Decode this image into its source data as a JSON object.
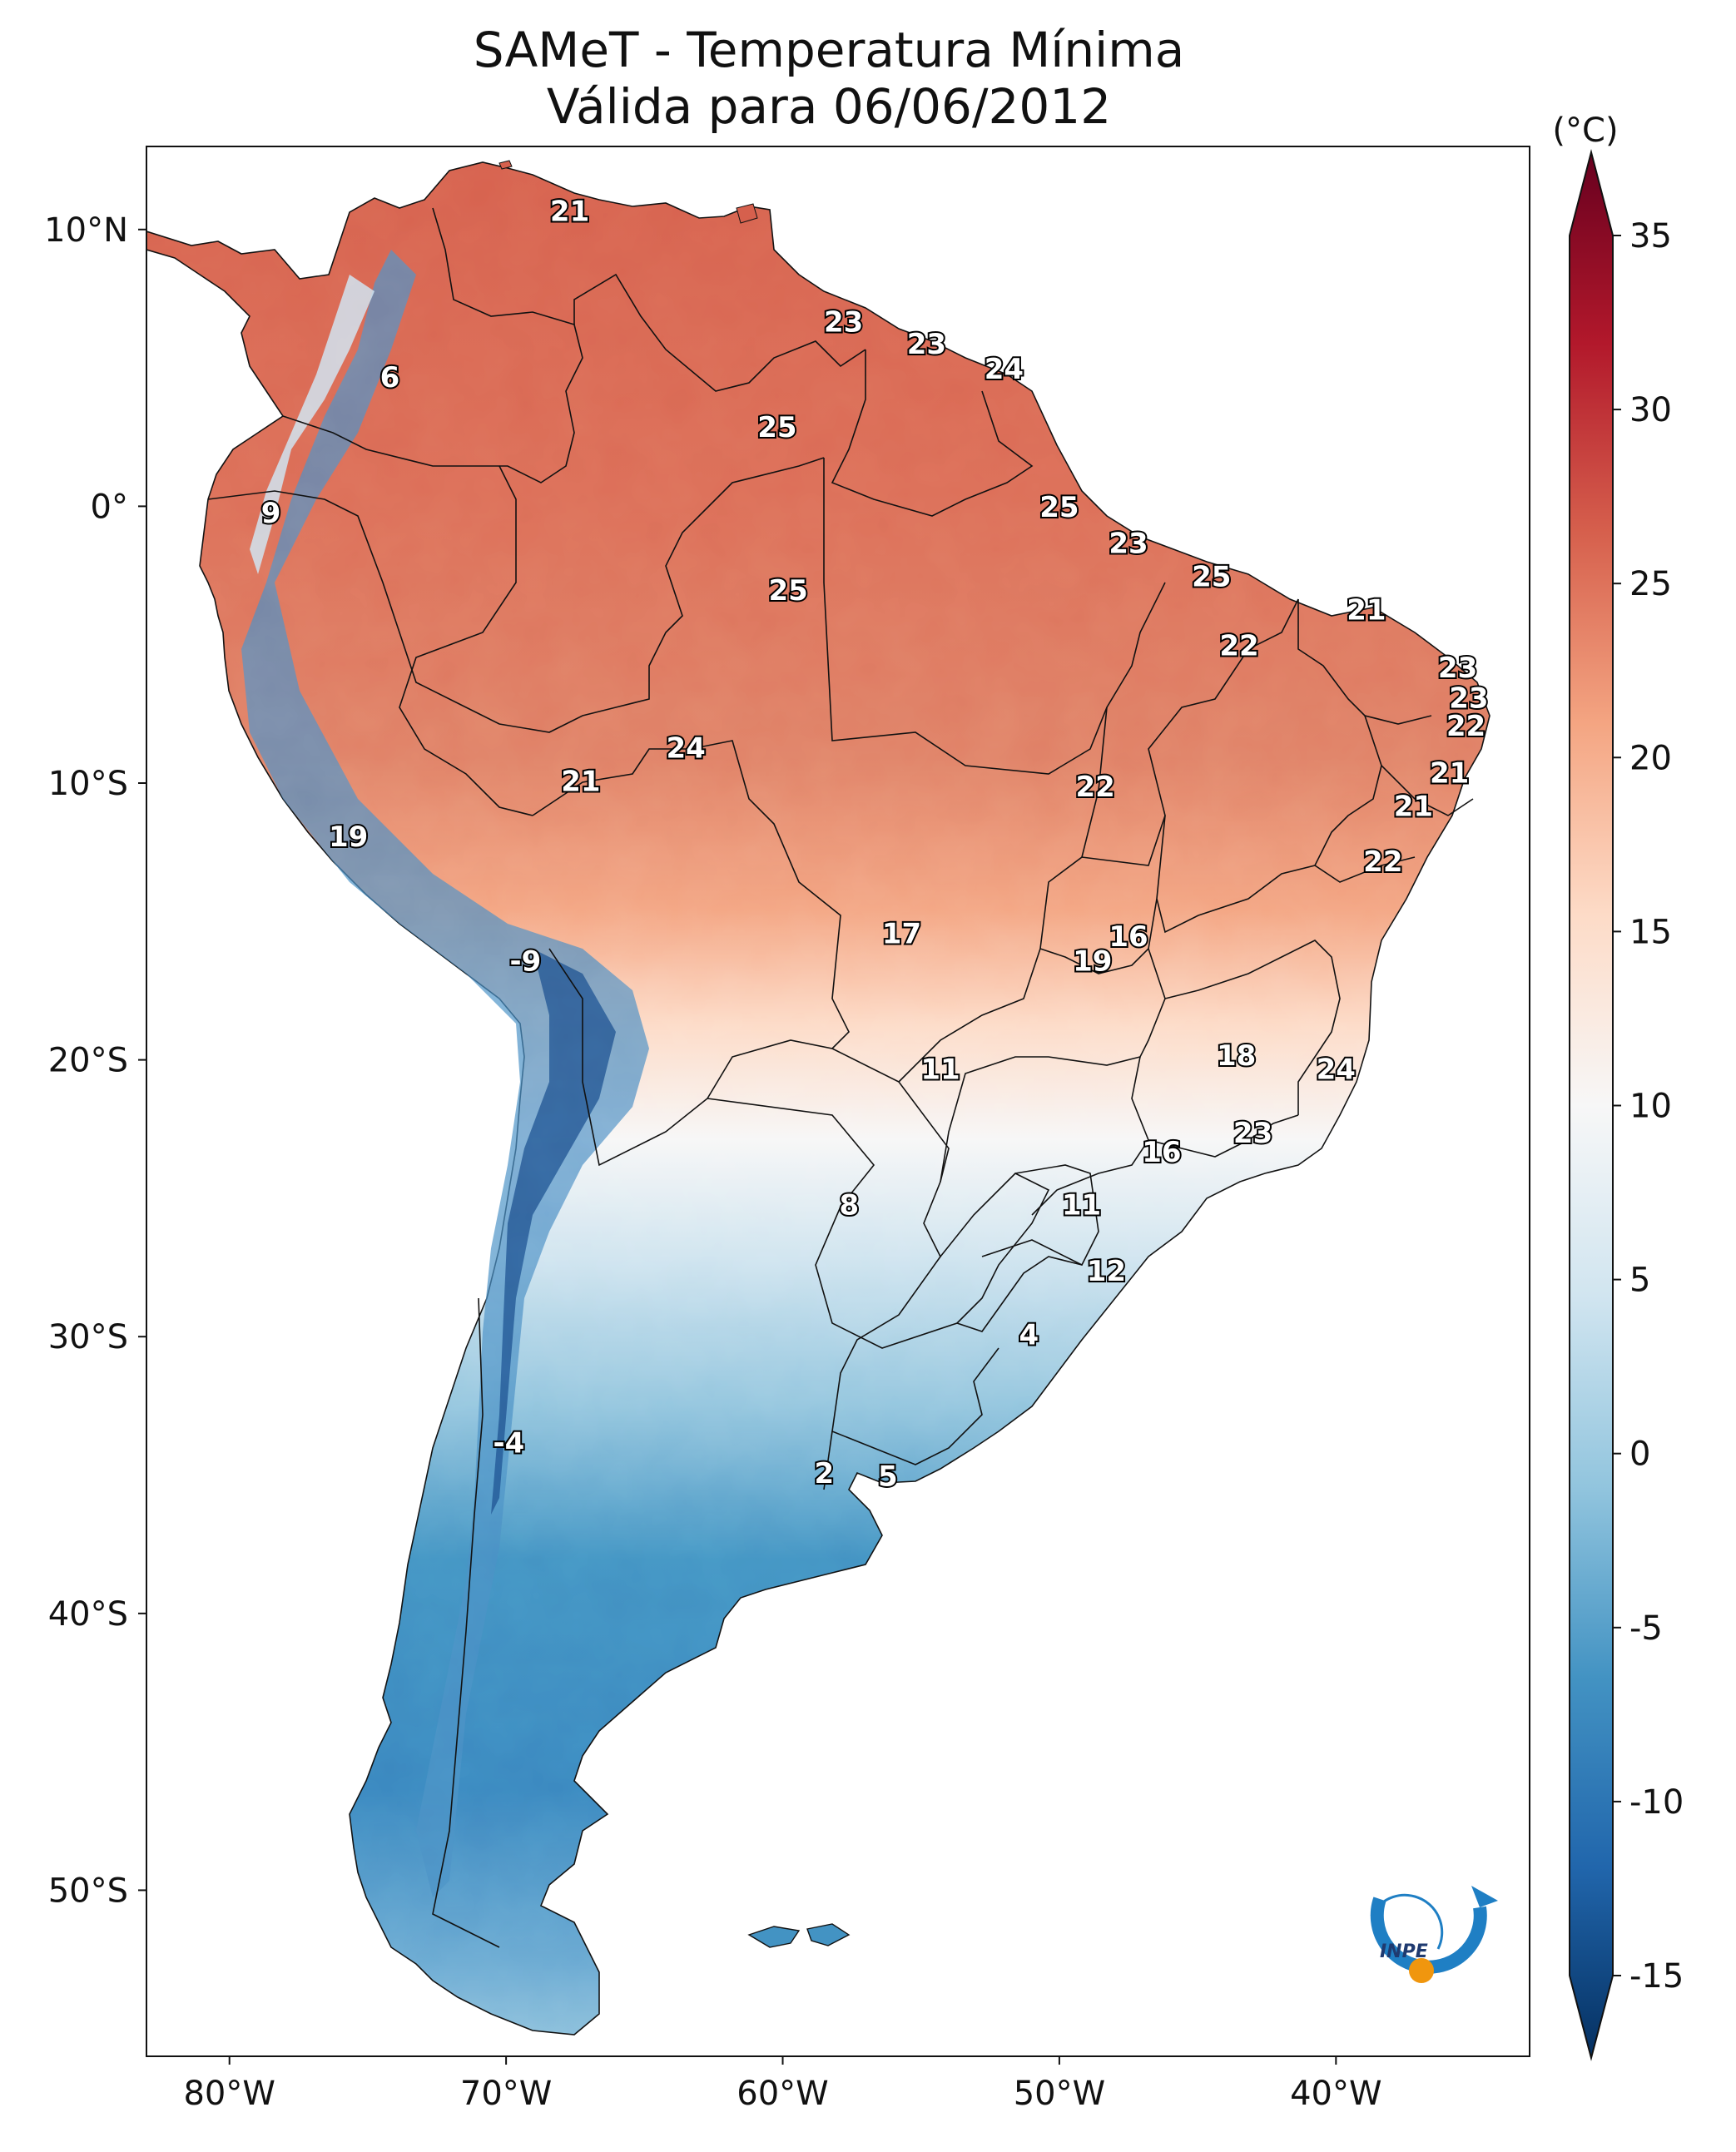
{
  "title_line1": "SAMeT - Temperatura Mínima",
  "title_line2": "Válida para 06/06/2012",
  "colorbar": {
    "unit": "(°C)",
    "ticks": [
      "35",
      "30",
      "25",
      "20",
      "15",
      "10",
      "5",
      "0",
      "-5",
      "-10",
      "-15"
    ],
    "tick_values": [
      35,
      30,
      25,
      20,
      15,
      10,
      5,
      0,
      -5,
      -10,
      -15
    ],
    "min": -15,
    "max": 35,
    "colors": [
      "#053061",
      "#2166ac",
      "#4393c3",
      "#92c5de",
      "#d1e5f0",
      "#f7f7f7",
      "#fddbc7",
      "#f4a582",
      "#d6604d",
      "#b2182b",
      "#67001f"
    ]
  },
  "axes": {
    "lon_labels": [
      "80°W",
      "70°W",
      "60°W",
      "50°W",
      "40°W"
    ],
    "lon_values": [
      -80,
      -70,
      -60,
      -50,
      -40
    ],
    "lat_labels": [
      "10°N",
      "0°",
      "10°S",
      "20°S",
      "30°S",
      "40°S",
      "50°S"
    ],
    "lat_values": [
      10,
      0,
      -10,
      -20,
      -30,
      -40,
      -50
    ],
    "lon_range": [
      -83,
      -33
    ],
    "lat_range": [
      -56,
      13
    ]
  },
  "temperature_labels": [
    {
      "text": "21",
      "lon": -67.7,
      "lat": 10.6
    },
    {
      "text": "6",
      "lon": -74.2,
      "lat": 4.6
    },
    {
      "text": "23",
      "lon": -57.8,
      "lat": 6.6
    },
    {
      "text": "23",
      "lon": -54.8,
      "lat": 5.8
    },
    {
      "text": "24",
      "lon": -52.0,
      "lat": 4.9
    },
    {
      "text": "25",
      "lon": -60.2,
      "lat": 2.8
    },
    {
      "text": "9",
      "lon": -78.5,
      "lat": -0.3
    },
    {
      "text": "25",
      "lon": -50.0,
      "lat": -0.1
    },
    {
      "text": "23",
      "lon": -47.5,
      "lat": -1.4
    },
    {
      "text": "25",
      "lon": -44.5,
      "lat": -2.6
    },
    {
      "text": "25",
      "lon": -59.8,
      "lat": -3.1
    },
    {
      "text": "21",
      "lon": -38.9,
      "lat": -3.8
    },
    {
      "text": "22",
      "lon": -43.5,
      "lat": -5.1
    },
    {
      "text": "23",
      "lon": -35.6,
      "lat": -5.9
    },
    {
      "text": "23",
      "lon": -35.2,
      "lat": -7.0
    },
    {
      "text": "22",
      "lon": -35.3,
      "lat": -8.0
    },
    {
      "text": "24",
      "lon": -63.5,
      "lat": -8.8
    },
    {
      "text": "21",
      "lon": -35.9,
      "lat": -9.7
    },
    {
      "text": "21",
      "lon": -67.3,
      "lat": -10.0
    },
    {
      "text": "22",
      "lon": -48.7,
      "lat": -10.2
    },
    {
      "text": "21",
      "lon": -37.2,
      "lat": -10.9
    },
    {
      "text": "19",
      "lon": -75.7,
      "lat": -12.0
    },
    {
      "text": "22",
      "lon": -38.3,
      "lat": -12.9
    },
    {
      "text": "17",
      "lon": -55.7,
      "lat": -15.5
    },
    {
      "text": "16",
      "lon": -47.5,
      "lat": -15.6
    },
    {
      "text": "19",
      "lon": -48.8,
      "lat": -16.5
    },
    {
      "text": "-9",
      "lon": -69.3,
      "lat": -16.5
    },
    {
      "text": "18",
      "lon": -43.6,
      "lat": -19.9
    },
    {
      "text": "11",
      "lon": -54.3,
      "lat": -20.4
    },
    {
      "text": "24",
      "lon": -40.0,
      "lat": -20.4
    },
    {
      "text": "23",
      "lon": -43.0,
      "lat": -22.7
    },
    {
      "text": "16",
      "lon": -46.3,
      "lat": -23.4
    },
    {
      "text": "8",
      "lon": -57.6,
      "lat": -25.3
    },
    {
      "text": "11",
      "lon": -49.2,
      "lat": -25.3
    },
    {
      "text": "12",
      "lon": -48.3,
      "lat": -27.7
    },
    {
      "text": "4",
      "lon": -51.1,
      "lat": -30.0
    },
    {
      "text": "-4",
      "lon": -69.9,
      "lat": -33.9
    },
    {
      "text": "2",
      "lon": -58.5,
      "lat": -35.0
    },
    {
      "text": "5",
      "lon": -56.2,
      "lat": -35.1
    }
  ],
  "logo": {
    "text": "INPE",
    "colors": [
      "#1f7fc4",
      "#f0960e"
    ]
  }
}
